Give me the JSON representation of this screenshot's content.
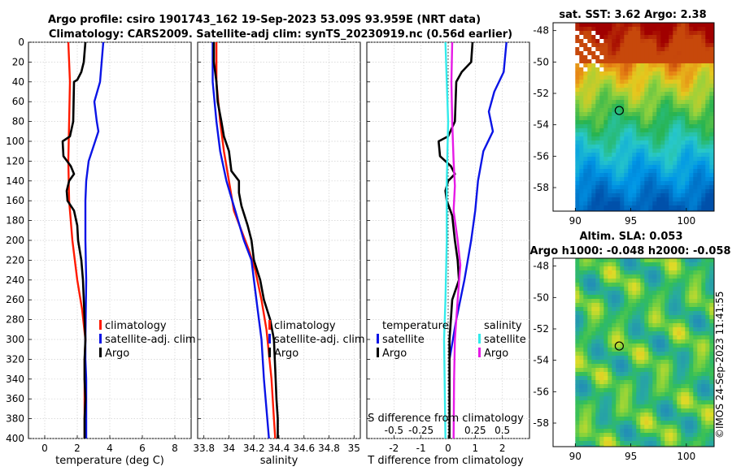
{
  "header": {
    "title_line1": "Argo profile: csiro 1901743_162 19-Sep-2023 53.09S 93.959E (NRT data)",
    "title_line2": "Climatology: CARS2009. Satellite-adj clim: synTS_20230919.nc (0.56d earlier)"
  },
  "timestamp": "©IMOS 24-Sep-2023 11:41:55",
  "colors": {
    "climatology": "#ff1a00",
    "satellite": "#0a14e6",
    "argo": "#000000",
    "satellite_s": "#33ebeb",
    "argo_s": "#e61ae6"
  },
  "chart_data": [
    {
      "type": "line",
      "name": "temperature-profile",
      "xlabel": "temperature (deg C)",
      "ylabel": "depth",
      "xlim": [
        -1,
        9
      ],
      "ylim": [
        400,
        0
      ],
      "x_ticks": [
        "0",
        "2",
        "4",
        "6",
        "8"
      ],
      "y_ticks": [
        "0",
        "20",
        "40",
        "60",
        "80",
        "100",
        "120",
        "140",
        "160",
        "180",
        "200",
        "220",
        "240",
        "260",
        "280",
        "300",
        "320",
        "340",
        "360",
        "380",
        "400"
      ],
      "legend": [
        "climatology",
        "satellite-adj. clim",
        "Argo"
      ],
      "series": [
        {
          "name": "climatology",
          "color": "#ff1a00",
          "points": [
            [
              1.45,
              0
            ],
            [
              1.55,
              40
            ],
            [
              1.5,
              80
            ],
            [
              1.45,
              120
            ],
            [
              1.5,
              160
            ],
            [
              1.7,
              200
            ],
            [
              2.0,
              240
            ],
            [
              2.3,
              270
            ],
            [
              2.5,
              300
            ],
            [
              2.45,
              320
            ],
            [
              2.45,
              400
            ]
          ]
        },
        {
          "name": "satellite-adj. clim",
          "color": "#0a14e6",
          "points": [
            [
              3.6,
              0
            ],
            [
              3.5,
              20
            ],
            [
              3.4,
              40
            ],
            [
              3.05,
              60
            ],
            [
              3.2,
              80
            ],
            [
              3.3,
              90
            ],
            [
              3.1,
              100
            ],
            [
              2.7,
              120
            ],
            [
              2.55,
              140
            ],
            [
              2.5,
              160
            ],
            [
              2.5,
              200
            ],
            [
              2.55,
              240
            ],
            [
              2.5,
              300
            ],
            [
              2.5,
              320
            ],
            [
              2.55,
              340
            ],
            [
              2.55,
              380
            ],
            [
              2.55,
              400
            ]
          ]
        },
        {
          "name": "Argo",
          "color": "#000000",
          "points": [
            [
              2.5,
              0
            ],
            [
              2.4,
              20
            ],
            [
              2.25,
              30
            ],
            [
              2.0,
              38
            ],
            [
              1.8,
              40
            ],
            [
              1.75,
              80
            ],
            [
              1.55,
              95
            ],
            [
              1.1,
              100
            ],
            [
              1.15,
              115
            ],
            [
              1.6,
              125
            ],
            [
              1.8,
              133
            ],
            [
              1.5,
              140
            ],
            [
              1.35,
              150
            ],
            [
              1.4,
              160
            ],
            [
              1.8,
              170
            ],
            [
              2.0,
              185
            ],
            [
              2.05,
              200
            ],
            [
              2.25,
              220
            ],
            [
              2.35,
              240
            ],
            [
              2.4,
              260
            ],
            [
              2.45,
              280
            ],
            [
              2.5,
              300
            ],
            [
              2.45,
              320
            ],
            [
              2.45,
              340
            ],
            [
              2.5,
              360
            ],
            [
              2.45,
              380
            ],
            [
              2.45,
              400
            ]
          ]
        }
      ]
    },
    {
      "type": "line",
      "name": "salinity-profile",
      "xlabel": "salinity",
      "xlim": [
        33.75,
        35.05
      ],
      "ylim": [
        400,
        0
      ],
      "x_ticks": [
        "33.8",
        "34",
        "34.2",
        "34.4",
        "34.6",
        "34.8",
        "35"
      ],
      "legend": [
        "climatology",
        "satellite-adj. clim",
        "Argo"
      ],
      "series": [
        {
          "name": "climatology",
          "color": "#ff1a00",
          "points": [
            [
              33.9,
              0
            ],
            [
              33.9,
              40
            ],
            [
              33.93,
              80
            ],
            [
              33.96,
              110
            ],
            [
              34.0,
              140
            ],
            [
              34.04,
              170
            ],
            [
              34.1,
              190
            ],
            [
              34.16,
              210
            ],
            [
              34.21,
              230
            ],
            [
              34.26,
              260
            ],
            [
              34.3,
              290
            ],
            [
              34.34,
              340
            ],
            [
              34.36,
              380
            ],
            [
              34.37,
              400
            ]
          ]
        },
        {
          "name": "satellite-adj. clim",
          "color": "#0a14e6",
          "points": [
            [
              33.87,
              0
            ],
            [
              33.87,
              40
            ],
            [
              33.9,
              80
            ],
            [
              33.93,
              110
            ],
            [
              33.98,
              140
            ],
            [
              34.05,
              170
            ],
            [
              34.12,
              200
            ],
            [
              34.18,
              220
            ],
            [
              34.2,
              240
            ],
            [
              34.23,
              270
            ],
            [
              34.26,
              300
            ],
            [
              34.28,
              340
            ],
            [
              34.3,
              370
            ],
            [
              34.32,
              400
            ]
          ]
        },
        {
          "name": "Argo",
          "color": "#000000",
          "points": [
            [
              33.88,
              0
            ],
            [
              33.88,
              20
            ],
            [
              33.9,
              40
            ],
            [
              33.91,
              60
            ],
            [
              33.94,
              80
            ],
            [
              33.96,
              95
            ],
            [
              34.0,
              110
            ],
            [
              34.02,
              130
            ],
            [
              34.08,
              140
            ],
            [
              34.08,
              152
            ],
            [
              34.1,
              165
            ],
            [
              34.15,
              185
            ],
            [
              34.18,
              200
            ],
            [
              34.2,
              220
            ],
            [
              34.25,
              240
            ],
            [
              34.28,
              260
            ],
            [
              34.33,
              280
            ],
            [
              34.36,
              300
            ],
            [
              34.37,
              330
            ],
            [
              34.38,
              360
            ],
            [
              34.39,
              380
            ],
            [
              34.39,
              400
            ]
          ]
        }
      ]
    },
    {
      "type": "line",
      "name": "difference-profile",
      "xlabel": "T difference from climatology",
      "secondary_xlabel": "S difference from climatology",
      "xlim": [
        -3,
        3
      ],
      "ylim": [
        400,
        0
      ],
      "x_ticks": [
        "-2",
        "-1",
        "0",
        "1",
        "2"
      ],
      "x_ticks_top": [
        "-0.5",
        "-0.25",
        "0.25",
        "0.5"
      ],
      "legend_left_title": "temperature",
      "legend_right_title": "salinity",
      "legend_left": [
        "satellite",
        "Argo"
      ],
      "legend_right": [
        "satellite",
        "Argo"
      ],
      "series": [
        {
          "name": "T satellite",
          "color": "#0a14e6",
          "points": [
            [
              2.15,
              0
            ],
            [
              2.05,
              30
            ],
            [
              1.7,
              50
            ],
            [
              1.5,
              70
            ],
            [
              1.65,
              90
            ],
            [
              1.3,
              110
            ],
            [
              1.1,
              140
            ],
            [
              1.0,
              170
            ],
            [
              0.85,
              200
            ],
            [
              0.6,
              240
            ],
            [
              0.3,
              280
            ],
            [
              0.05,
              320
            ],
            [
              0.05,
              400
            ]
          ]
        },
        {
          "name": "T Argo",
          "color": "#000000",
          "points": [
            [
              0.9,
              0
            ],
            [
              0.85,
              20
            ],
            [
              0.5,
              30
            ],
            [
              0.3,
              40
            ],
            [
              0.25,
              80
            ],
            [
              0.0,
              95
            ],
            [
              -0.35,
              100
            ],
            [
              -0.3,
              115
            ],
            [
              0.1,
              125
            ],
            [
              0.25,
              133
            ],
            [
              0.0,
              140
            ],
            [
              -0.1,
              150
            ],
            [
              -0.05,
              160
            ],
            [
              0.15,
              175
            ],
            [
              0.25,
              200
            ],
            [
              0.35,
              220
            ],
            [
              0.4,
              240
            ],
            [
              0.15,
              260
            ],
            [
              0.05,
              300
            ],
            [
              0.05,
              400
            ]
          ]
        },
        {
          "name": "S satellite",
          "color": "#33ebeb",
          "points": [
            [
              -0.1,
              0
            ],
            [
              -0.05,
              40
            ],
            [
              0.0,
              80
            ],
            [
              -0.05,
              140
            ],
            [
              -0.05,
              200
            ],
            [
              -0.1,
              260
            ],
            [
              -0.15,
              300
            ],
            [
              -0.12,
              360
            ],
            [
              -0.1,
              400
            ]
          ]
        },
        {
          "name": "S Argo",
          "color": "#e61ae6",
          "points": [
            [
              0.15,
              0
            ],
            [
              0.12,
              40
            ],
            [
              0.15,
              80
            ],
            [
              0.2,
              120
            ],
            [
              0.25,
              145
            ],
            [
              0.2,
              170
            ],
            [
              0.35,
              200
            ],
            [
              0.45,
              225
            ],
            [
              0.35,
              260
            ],
            [
              0.25,
              300
            ],
            [
              0.22,
              340
            ],
            [
              0.2,
              400
            ]
          ]
        }
      ]
    },
    {
      "type": "heatmap",
      "name": "sst-map",
      "title": "sat. SST: 3.62 Argo: 2.38",
      "xlim": [
        88,
        102.5
      ],
      "ylim": [
        -59.5,
        -47.5
      ],
      "x_ticks": [
        "90",
        "95",
        "100"
      ],
      "y_ticks": [
        "-48",
        "-50",
        "-52",
        "-54",
        "-56",
        "-58"
      ],
      "profile_location": [
        93.959,
        -53.09
      ]
    },
    {
      "type": "heatmap",
      "name": "sla-map",
      "title": "Altim. SLA: 0.053",
      "title_line2": "Argo h1000: -0.048 h2000: -0.058",
      "xlim": [
        88,
        102.5
      ],
      "ylim": [
        -59.5,
        -47.5
      ],
      "x_ticks": [
        "90",
        "95",
        "100"
      ],
      "y_ticks": [
        "-48",
        "-50",
        "-52",
        "-54",
        "-56",
        "-58"
      ],
      "profile_location": [
        93.959,
        -53.09
      ]
    }
  ]
}
